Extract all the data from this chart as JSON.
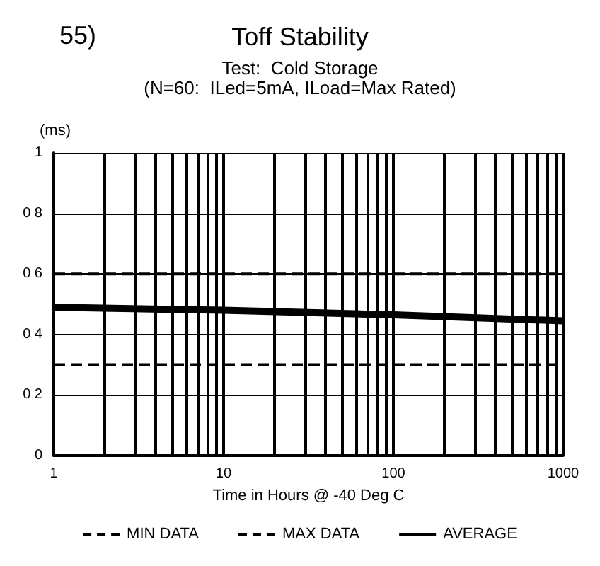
{
  "chart_data": {
    "type": "line",
    "title": "Toff Stability",
    "subtitle": "Test:  Cold Storage\n(N=60:  ILed=5mA, ILoad=Max Rated)",
    "annotations": [
      "55)"
    ],
    "ylabel": "(ms)",
    "xlabel": "Time in Hours @ -40 Deg C",
    "xlim": [
      1,
      1000
    ],
    "xticks": [
      1,
      {
        "value": 2,
        "label": null
      },
      {
        "value": 3,
        "label": null
      },
      {
        "value": 4,
        "label": null
      },
      {
        "value": 5,
        "label": null
      },
      {
        "value": 6,
        "label": null
      },
      {
        "value": 7,
        "label": null
      },
      {
        "value": 8,
        "label": null
      },
      {
        "value": 9,
        "label": null
      },
      10,
      {
        "value": 20,
        "label": null
      },
      {
        "value": 30,
        "label": null
      },
      {
        "value": 40,
        "label": null
      },
      {
        "value": 50,
        "label": null
      },
      {
        "value": 60,
        "label": null
      },
      {
        "value": 70,
        "label": null
      },
      {
        "value": 80,
        "label": null
      },
      {
        "value": 90,
        "label": null
      },
      100,
      {
        "value": 200,
        "label": null
      },
      {
        "value": 300,
        "label": null
      },
      {
        "value": 400,
        "label": null
      },
      {
        "value": 500,
        "label": null
      },
      {
        "value": 600,
        "label": null
      },
      {
        "value": 700,
        "label": null
      },
      {
        "value": 800,
        "label": null
      },
      {
        "value": 900,
        "label": null
      },
      1000
    ],
    "ylim": [
      0,
      1
    ],
    "yticks": [
      0,
      {
        "value": 0.2,
        "label": "0 2"
      },
      {
        "value": 0.4,
        "label": "0 4"
      },
      {
        "value": 0.6,
        "label": "0 6"
      },
      {
        "value": 0.8,
        "label": "0 8"
      },
      1
    ],
    "log": "x",
    "grid": true,
    "legend": "bottom",
    "marker": "none",
    "series": [
      {
        "name": "MIN DATA",
        "color": "#000000",
        "line_style": "dashed",
        "x": [
          1,
          1000
        ],
        "values": [
          0.3,
          0.3
        ]
      },
      {
        "name": "MAX DATA",
        "color": "#000000",
        "line_style": "dashed",
        "x": [
          1,
          1000
        ],
        "values": [
          0.6,
          0.6
        ]
      },
      {
        "name": "AVERAGE",
        "color": "#000000",
        "line_style": "solid",
        "x": [
          1,
          10,
          100,
          1000
        ],
        "values": [
          0.49,
          0.48,
          0.465,
          0.445
        ]
      }
    ]
  }
}
